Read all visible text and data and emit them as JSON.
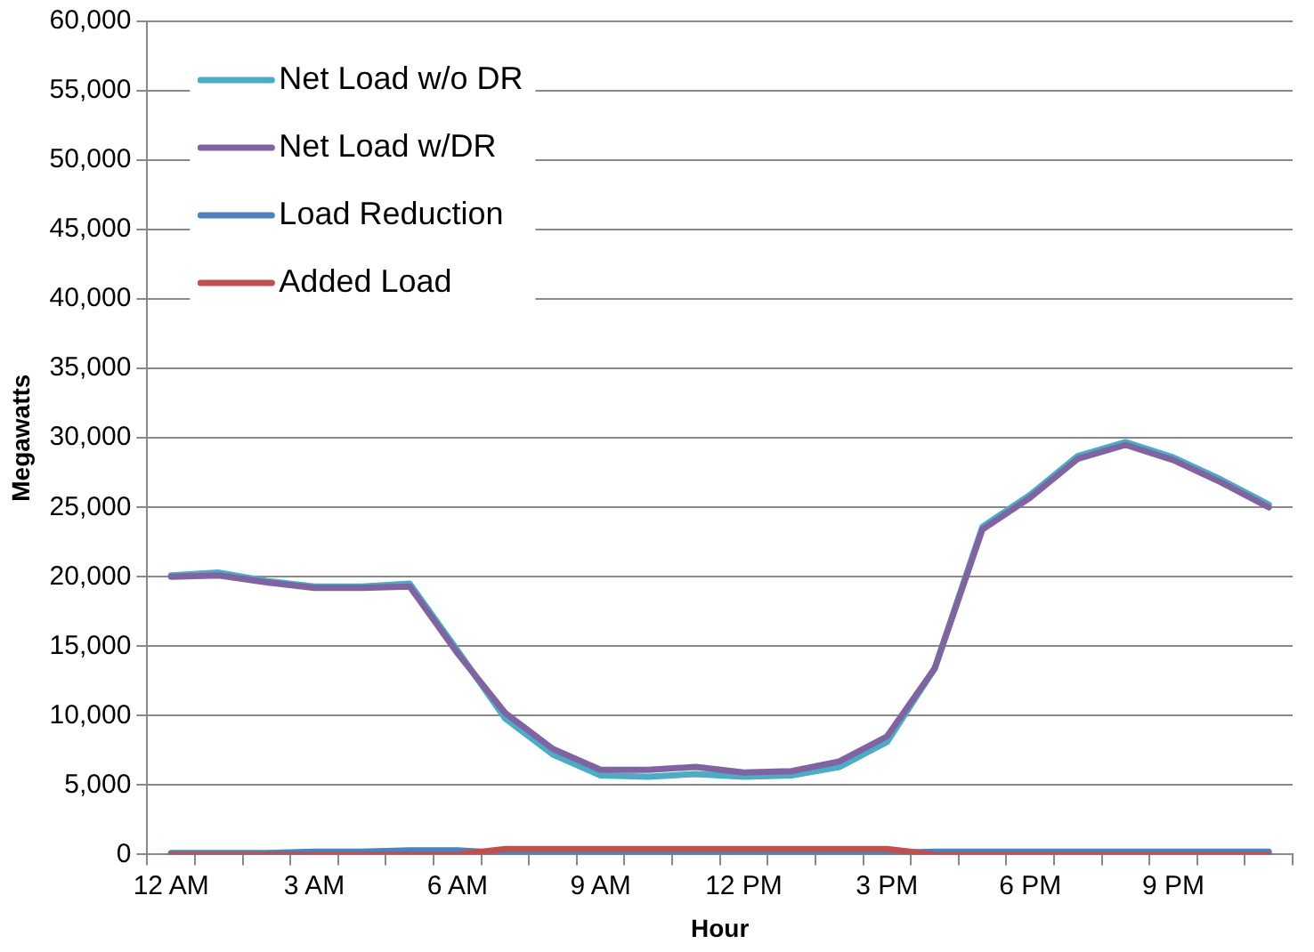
{
  "chart_data": {
    "type": "line",
    "xlabel": "Hour",
    "ylabel": "Megawatts",
    "categories": [
      "12 AM",
      null,
      null,
      "3 AM",
      null,
      null,
      "6 AM",
      null,
      null,
      "9 AM",
      null,
      null,
      "12 PM",
      null,
      null,
      "3 PM",
      null,
      null,
      "6 PM",
      null,
      null,
      "9 PM",
      null,
      null
    ],
    "series": [
      {
        "name": "Net Load w/o DR",
        "color": "#4bacc6",
        "values": [
          20100,
          20300,
          19700,
          19300,
          19300,
          19500,
          14700,
          9800,
          7200,
          5700,
          5600,
          5800,
          5600,
          5700,
          6300,
          8100,
          13400,
          23600,
          25900,
          28700,
          29700,
          28600,
          27000,
          25200
        ]
      },
      {
        "name": "Net Load w/DR",
        "color": "#8064a2",
        "values": [
          20000,
          20100,
          19600,
          19200,
          19200,
          19300,
          14500,
          10200,
          7600,
          6100,
          6100,
          6300,
          5900,
          6000,
          6700,
          8500,
          13400,
          23400,
          25700,
          28500,
          29500,
          28400,
          26800,
          25000
        ]
      },
      {
        "name": "Load Reduction",
        "color": "#4f81bd",
        "values": [
          100,
          100,
          100,
          200,
          200,
          300,
          300,
          100,
          100,
          100,
          100,
          100,
          100,
          100,
          100,
          100,
          200,
          200,
          200,
          200,
          200,
          200,
          200,
          200
        ]
      },
      {
        "name": "Added Load",
        "color": "#c0504d",
        "values": [
          0,
          0,
          0,
          0,
          0,
          0,
          0,
          400,
          400,
          400,
          400,
          400,
          400,
          400,
          400,
          400,
          0,
          0,
          0,
          0,
          0,
          0,
          0,
          0
        ]
      }
    ],
    "ylim": [
      0,
      60000
    ],
    "yticks": [
      0,
      {
        "value": 5000,
        "label": "5,000"
      },
      {
        "value": 10000,
        "label": "10,000"
      },
      {
        "value": 15000,
        "label": "15,000"
      },
      {
        "value": 20000,
        "label": "20,000"
      },
      {
        "value": 25000,
        "label": "25,000"
      },
      {
        "value": 30000,
        "label": "30,000"
      },
      {
        "value": 35000,
        "label": "35,000"
      },
      {
        "value": 40000,
        "label": "40,000"
      },
      {
        "value": 45000,
        "label": "45,000"
      },
      {
        "value": 50000,
        "label": "50,000"
      },
      {
        "value": 55000,
        "label": "55,000"
      },
      {
        "value": 60000,
        "label": "60,000"
      }
    ],
    "grid": "y",
    "legend": "top left",
    "marker": "none",
    "line_style": "solid"
  }
}
